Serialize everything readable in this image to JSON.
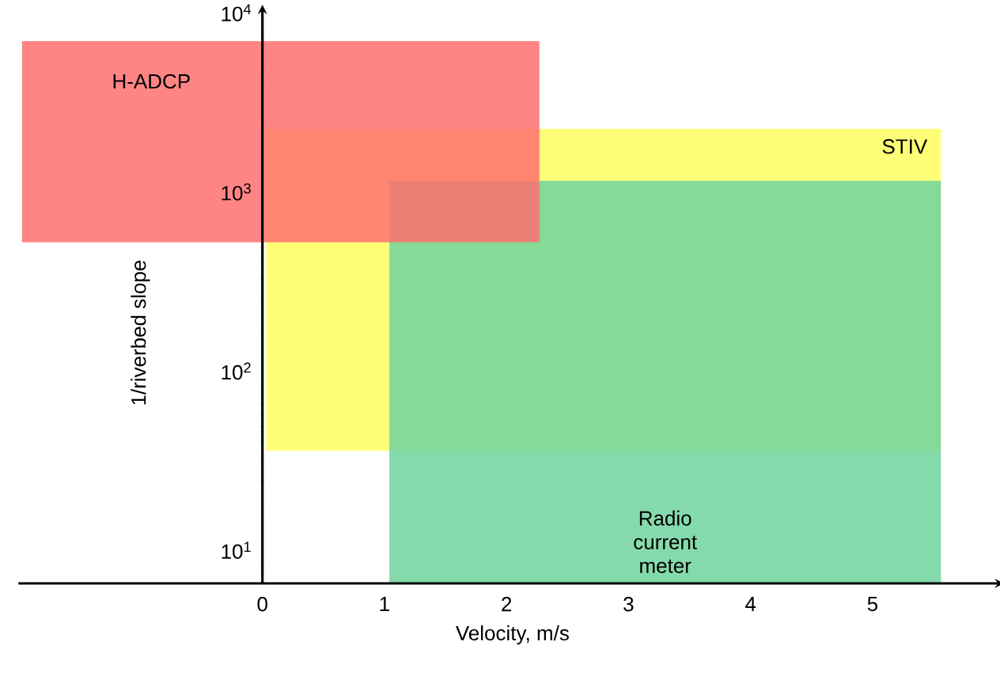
{
  "chart_data": {
    "type": "line",
    "xlabel": "Velocity, m/s",
    "ylabel": "1/riverbed slope",
    "log": "y",
    "xlim": [
      -2,
      6
    ],
    "ylim": [
      8,
      12000
    ],
    "xticks": [
      0,
      1,
      2,
      3,
      4,
      5
    ],
    "yticks": [
      {
        "value": 10,
        "label": "10$^{1}$"
      },
      {
        "value": 100,
        "label": "10$^{2}$"
      },
      {
        "value": 1000,
        "label": "10$^{3}$"
      },
      {
        "value": 10000,
        "label": "10$^{4}$"
      }
    ],
    "colors": [
      "#ffff77",
      "#70d49c",
      "#ff7070"
    ],
    "series": [
      {
        "name": "STIV",
        "x": [
          0.03,
          5.56
        ],
        "values": [
          null,
          null
        ],
        "lower": [
          44,
          44
        ],
        "upper": [
          2750,
          2750
        ]
      },
      {
        "name": "Radio current meter",
        "x": [
          1.04,
          5.56
        ],
        "values": [
          null,
          null
        ],
        "lower": [
          8,
          8
        ],
        "upper": [
          1410,
          1410
        ]
      },
      {
        "name": "H-ADCP",
        "x": [
          -1.97,
          2.27
        ],
        "values": [
          null,
          null
        ],
        "lower": [
          640,
          640
        ],
        "upper": [
          8500,
          8500
        ]
      }
    ]
  }
}
